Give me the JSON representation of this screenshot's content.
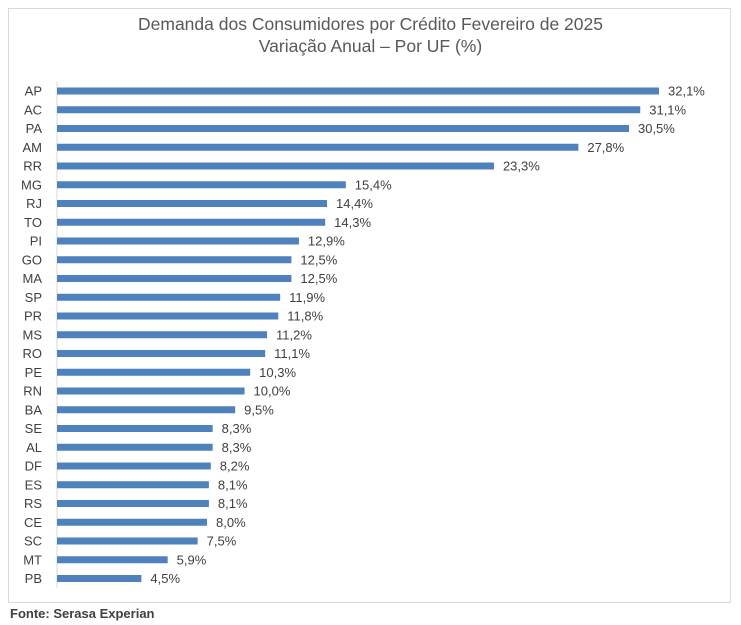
{
  "chart_data": {
    "type": "bar",
    "orientation": "horizontal",
    "title": "Demanda dos Consumidores por Crédito Fevereiro de 2025",
    "subtitle": "Variação Anual – Por UF (%)",
    "categories": [
      "AP",
      "AC",
      "PA",
      "AM",
      "RR",
      "MG",
      "RJ",
      "TO",
      "PI",
      "GO",
      "MA",
      "SP",
      "PR",
      "MS",
      "RO",
      "PE",
      "RN",
      "BA",
      "SE",
      "AL",
      "DF",
      "ES",
      "RS",
      "CE",
      "SC",
      "MT",
      "PB"
    ],
    "values": [
      32.1,
      31.1,
      30.5,
      27.8,
      23.3,
      15.4,
      14.4,
      14.3,
      12.9,
      12.5,
      12.5,
      11.9,
      11.8,
      11.2,
      11.1,
      10.3,
      10.0,
      9.5,
      8.3,
      8.3,
      8.2,
      8.1,
      8.1,
      8.0,
      7.5,
      5.9,
      4.5
    ],
    "data_labels": [
      "32,1%",
      "31,1%",
      "30,5%",
      "27,8%",
      "23,3%",
      "15,4%",
      "14,4%",
      "14,3%",
      "12,9%",
      "12,5%",
      "12,5%",
      "11,9%",
      "11,8%",
      "11,2%",
      "11,1%",
      "10,3%",
      "10,0%",
      "9,5%",
      "8,3%",
      "8,3%",
      "8,2%",
      "8,1%",
      "8,1%",
      "8,0%",
      "7,5%",
      "5,9%",
      "4,5%"
    ],
    "xlim": [
      0,
      32.1
    ],
    "grid": false,
    "bar_color": "#4f81bd"
  },
  "source": "Fonte: Serasa Experian"
}
